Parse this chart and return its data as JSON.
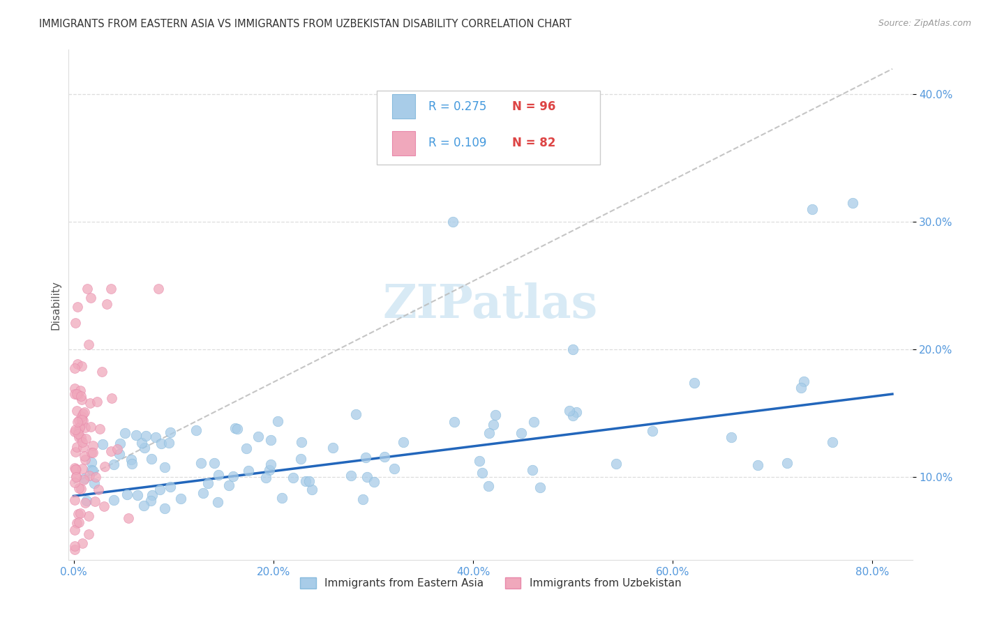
{
  "title": "IMMIGRANTS FROM EASTERN ASIA VS IMMIGRANTS FROM UZBEKISTAN DISABILITY CORRELATION CHART",
  "source": "Source: ZipAtlas.com",
  "series1_label": "Immigrants from Eastern Asia",
  "series2_label": "Immigrants from Uzbekistan",
  "color_blue": "#a8cce8",
  "color_pink": "#f0a8bc",
  "line_blue": "#2266bb",
  "line_pink_dash": "#cccccc",
  "legend_r1_color": "#4499dd",
  "legend_n1_color": "#dd4444",
  "legend_r2_color": "#4499dd",
  "legend_n2_color": "#dd4444",
  "tick_color": "#5599dd",
  "grid_color": "#dddddd",
  "title_color": "#333333",
  "watermark_color": "#d8eaf5",
  "xmin": -0.005,
  "xmax": 0.84,
  "ymin": 0.035,
  "ymax": 0.435,
  "xticks": [
    0.0,
    0.2,
    0.4,
    0.6,
    0.8
  ],
  "xticklabels": [
    "0.0%",
    "20.0%",
    "40.0%",
    "60.0%",
    "80.0%"
  ],
  "yticks": [
    0.1,
    0.2,
    0.3,
    0.4
  ],
  "yticklabels": [
    "10.0%",
    "20.0%",
    "30.0%",
    "40.0%"
  ],
  "blue_line_x": [
    0.0,
    0.82
  ],
  "blue_line_y": [
    0.085,
    0.165
  ],
  "pink_line_x": [
    0.0,
    0.82
  ],
  "pink_line_y": [
    0.095,
    0.42
  ]
}
